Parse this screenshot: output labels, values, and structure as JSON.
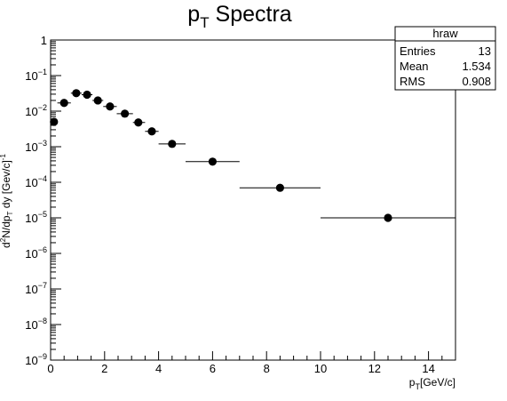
{
  "chart_data": {
    "type": "scatter",
    "title": "p_T Spectra",
    "title_main": "p",
    "title_sub": "T",
    "title_rest": " Spectra",
    "xlabel": "p_T[GeV/c]",
    "xlabel_main": "p",
    "xlabel_sub": "T",
    "xlabel_rest": "[GeV/c]",
    "ylabel": "d^2N/dp_T dy [Gev/c]^-1",
    "ylabel_parts": {
      "d": "d",
      "sup2": "2",
      "n": "N/dp",
      "subT": "T",
      "dy": " dy [Gev/c]",
      "supm1": "-1"
    },
    "xlim": [
      0,
      15
    ],
    "ylim": [
      1e-09,
      1
    ],
    "yscale": "log",
    "x_ticks": [
      0,
      2,
      4,
      6,
      8,
      10,
      12,
      14
    ],
    "y_ticks": [
      {
        "value": 1,
        "mantissa": "1",
        "exponent": ""
      },
      {
        "value": 0.1,
        "mantissa": "10",
        "exponent": "−1"
      },
      {
        "value": 0.01,
        "mantissa": "10",
        "exponent": "−2"
      },
      {
        "value": 0.001,
        "mantissa": "10",
        "exponent": "−3"
      },
      {
        "value": 0.0001,
        "mantissa": "10",
        "exponent": "−4"
      },
      {
        "value": 1e-05,
        "mantissa": "10",
        "exponent": "−5"
      },
      {
        "value": 1e-06,
        "mantissa": "10",
        "exponent": "−6"
      },
      {
        "value": 1e-07,
        "mantissa": "10",
        "exponent": "−7"
      },
      {
        "value": 1e-08,
        "mantissa": "10",
        "exponent": "−8"
      },
      {
        "value": 1e-09,
        "mantissa": "10",
        "exponent": "−9"
      }
    ],
    "series": [
      {
        "name": "hraw",
        "points": [
          {
            "x": 0.125,
            "y": 0.005,
            "xlo": 0.0,
            "xhi": 0.25
          },
          {
            "x": 0.5,
            "y": 0.017,
            "xlo": 0.25,
            "xhi": 0.75
          },
          {
            "x": 0.95,
            "y": 0.032,
            "xlo": 0.75,
            "xhi": 1.15
          },
          {
            "x": 1.35,
            "y": 0.029,
            "xlo": 1.15,
            "xhi": 1.55
          },
          {
            "x": 1.75,
            "y": 0.02,
            "xlo": 1.55,
            "xhi": 1.95
          },
          {
            "x": 2.2,
            "y": 0.0135,
            "xlo": 1.95,
            "xhi": 2.45
          },
          {
            "x": 2.75,
            "y": 0.0085,
            "xlo": 2.45,
            "xhi": 3.05
          },
          {
            "x": 3.25,
            "y": 0.0048,
            "xlo": 3.05,
            "xhi": 3.5
          },
          {
            "x": 3.75,
            "y": 0.0027,
            "xlo": 3.5,
            "xhi": 4.0
          },
          {
            "x": 4.5,
            "y": 0.0012,
            "xlo": 4.0,
            "xhi": 5.0
          },
          {
            "x": 6.0,
            "y": 0.00038,
            "xlo": 5.0,
            "xhi": 7.0
          },
          {
            "x": 8.5,
            "y": 7e-05,
            "xlo": 7.0,
            "xhi": 10.0
          },
          {
            "x": 12.5,
            "y": 1e-05,
            "xlo": 10.0,
            "xhi": 15.0
          }
        ]
      }
    ]
  },
  "stats_box": {
    "name": "hraw",
    "rows": [
      {
        "label": "Entries",
        "value": "13"
      },
      {
        "label": "Mean",
        "value": "1.534"
      },
      {
        "label": "RMS",
        "value": "0.908"
      }
    ]
  }
}
